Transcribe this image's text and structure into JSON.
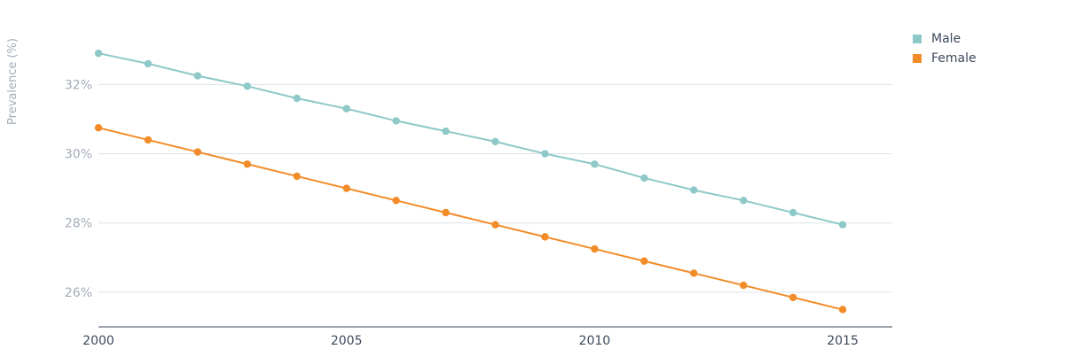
{
  "chart_data": {
    "type": "line",
    "title": "",
    "xlabel": "",
    "ylabel": "Prevalence (%)",
    "x": [
      2000,
      2001,
      2002,
      2003,
      2004,
      2005,
      2006,
      2007,
      2008,
      2009,
      2010,
      2011,
      2012,
      2013,
      2014,
      2015
    ],
    "xlim": [
      2000,
      2016
    ],
    "ylim": [
      25,
      33.8
    ],
    "x_ticks": [
      2000,
      2005,
      2010,
      2015
    ],
    "y_ticks": [
      26,
      28,
      30,
      32
    ],
    "y_tick_labels": [
      "26%",
      "28%",
      "30%",
      "32%"
    ],
    "grid": "horizontal",
    "legend_position": "top-right",
    "series": [
      {
        "name": "Male",
        "color": "#8ec8c8",
        "values": [
          32.9,
          32.6,
          32.25,
          31.95,
          31.6,
          31.3,
          30.95,
          30.65,
          30.35,
          30.0,
          29.7,
          29.3,
          28.95,
          28.65,
          28.3,
          27.95
        ]
      },
      {
        "name": "Female",
        "color": "#f28c28",
        "values": [
          30.75,
          30.4,
          30.05,
          29.7,
          29.35,
          29.0,
          28.65,
          28.3,
          27.95,
          27.6,
          27.25,
          26.9,
          26.55,
          26.2,
          25.85,
          25.5
        ]
      }
    ]
  }
}
